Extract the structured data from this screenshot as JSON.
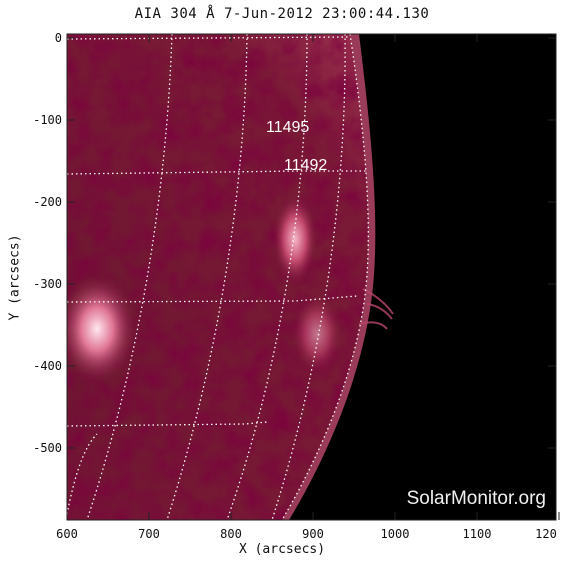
{
  "title": "AIA 304 Å   7-Jun-2012 23:00:44.130",
  "xlabel": "X (arcsecs)",
  "ylabel": "Y (arcsecs)",
  "x_ticks": [
    "600",
    "700",
    "800",
    "900",
    "1000",
    "1100",
    "120"
  ],
  "y_ticks": [
    "0",
    "-100",
    "-200",
    "-300",
    "-400",
    "-500"
  ],
  "active_regions": [
    {
      "id": "11495"
    },
    {
      "id": "11492"
    }
  ],
  "watermark": "SolarMonitor.org",
  "colors": {
    "disk": "#8a1f3f",
    "limb": "#d96f90",
    "background": "#000000",
    "grid": "#ffffff"
  }
}
